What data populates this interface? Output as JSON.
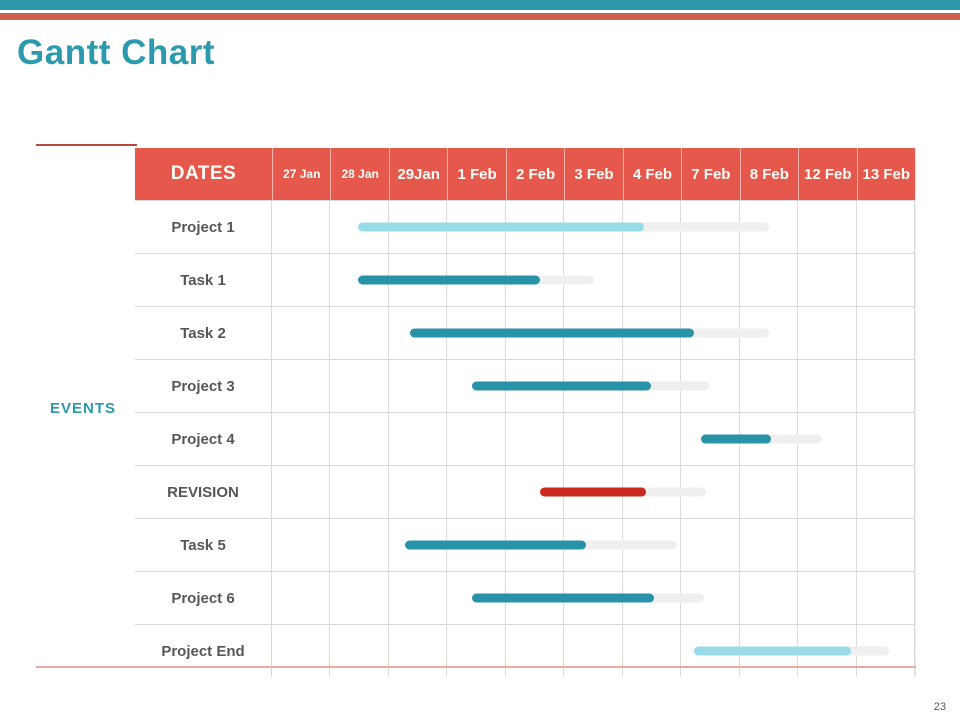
{
  "page": {
    "title": "Gantt Chart",
    "page_number": "23"
  },
  "table": {
    "events_label": "EVENTS",
    "header": {
      "label": "DATES"
    }
  },
  "chart_data": {
    "type": "bar",
    "subtype": "gantt",
    "title": "Gantt Chart",
    "xlabel": "DATES",
    "ylabel": "EVENTS",
    "grid": true,
    "columns": [
      {
        "label": "27 Jan",
        "small": true
      },
      {
        "label": "28 Jan",
        "small": true
      },
      {
        "label": "29Jan",
        "small": false
      },
      {
        "label": "1 Feb",
        "small": false
      },
      {
        "label": "2 Feb",
        "small": false
      },
      {
        "label": "3 Feb",
        "small": false
      },
      {
        "label": "4 Feb",
        "small": false
      },
      {
        "label": "7 Feb",
        "small": false
      },
      {
        "label": "8 Feb",
        "small": false
      },
      {
        "label": "12 Feb",
        "small": false
      },
      {
        "label": "13 Feb",
        "small": false
      }
    ],
    "colors": {
      "teal": "#2892A8",
      "light": "#99DCE9",
      "red": "#C8281E",
      "track": "#EFEFEF"
    },
    "tasks": [
      {
        "name": "Project 1",
        "color": "light",
        "start_col": 1.47,
        "end_col": 6.37,
        "track_end_col": 8.5,
        "start_date": "28 Jan",
        "end_date": "4 Feb"
      },
      {
        "name": "Task 1",
        "color": "teal",
        "start_col": 1.47,
        "end_col": 4.58,
        "track_end_col": 5.51,
        "start_date": "28 Jan",
        "end_date": "2 Feb"
      },
      {
        "name": "Task 2",
        "color": "teal",
        "start_col": 2.36,
        "end_col": 7.22,
        "track_end_col": 8.5,
        "start_date": "29 Jan",
        "end_date": "7 Feb"
      },
      {
        "name": "Project 3",
        "color": "teal",
        "start_col": 3.43,
        "end_col": 6.49,
        "track_end_col": 7.48,
        "start_date": "1 Feb",
        "end_date": "4 Feb"
      },
      {
        "name": "Project 4",
        "color": "teal",
        "start_col": 7.34,
        "end_col": 8.54,
        "track_end_col": 9.41,
        "start_date": "7 Feb",
        "end_date": "8 Feb"
      },
      {
        "name": "REVISION",
        "color": "red",
        "start_col": 4.58,
        "end_col": 6.4,
        "track_end_col": 7.43,
        "start_date": "2 Feb",
        "end_date": "4 Feb"
      },
      {
        "name": "Task 5",
        "color": "teal",
        "start_col": 2.27,
        "end_col": 5.38,
        "track_end_col": 6.93,
        "start_date": "29 Jan",
        "end_date": "2 Feb"
      },
      {
        "name": "Project 6",
        "color": "teal",
        "start_col": 3.43,
        "end_col": 6.54,
        "track_end_col": 7.39,
        "start_date": "1 Feb",
        "end_date": "4 Feb"
      },
      {
        "name": "Project End",
        "color": "light",
        "start_col": 7.22,
        "end_col": 9.9,
        "track_end_col": 10.55,
        "start_date": "7 Feb",
        "end_date": "13 Feb"
      }
    ]
  }
}
